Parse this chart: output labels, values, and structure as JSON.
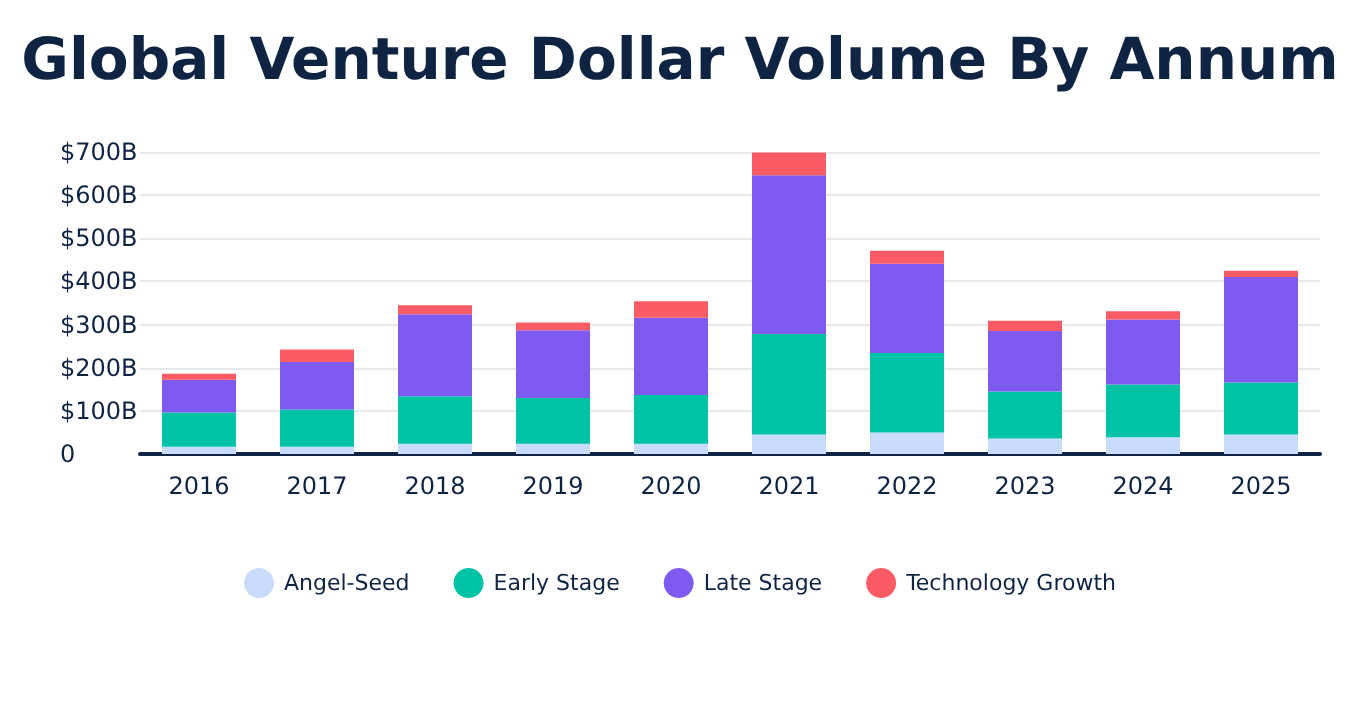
{
  "chart_data": {
    "type": "bar",
    "title": "Global Venture Dollar Volume By Annum",
    "stacked": true,
    "categories": [
      "2016",
      "2017",
      "2018",
      "2019",
      "2020",
      "2021",
      "2022",
      "2023",
      "2024",
      "2025"
    ],
    "series": [
      {
        "name": "Angel-Seed",
        "color": "#c9dcfb",
        "values": [
          17,
          17,
          24,
          24,
          24,
          45,
          50,
          36,
          39,
          45
        ]
      },
      {
        "name": "Early Stage",
        "color": "#00c3a5",
        "values": [
          79,
          86,
          110,
          106,
          113,
          233,
          184,
          109,
          122,
          121
        ]
      },
      {
        "name": "Late Stage",
        "color": "#7f5af0",
        "values": [
          76,
          110,
          190,
          157,
          179,
          368,
          207,
          140,
          151,
          244
        ]
      },
      {
        "name": "Technology Growth",
        "color": "#fb5b64",
        "values": [
          14,
          29,
          21,
          18,
          38,
          53,
          30,
          24,
          19,
          15
        ]
      }
    ],
    "ylim": [
      0,
      700
    ],
    "yticks": [
      0,
      {
        "value": 100,
        "label": "$100B"
      },
      {
        "value": 200,
        "label": "$200B"
      },
      {
        "value": 300,
        "label": "$300B"
      },
      {
        "value": 400,
        "label": "$400B"
      },
      {
        "value": 500,
        "label": "$500B"
      },
      {
        "value": 600,
        "label": "$600B"
      },
      {
        "value": 700,
        "label": "$700B"
      }
    ],
    "grid": "y",
    "legend": "bottom"
  }
}
